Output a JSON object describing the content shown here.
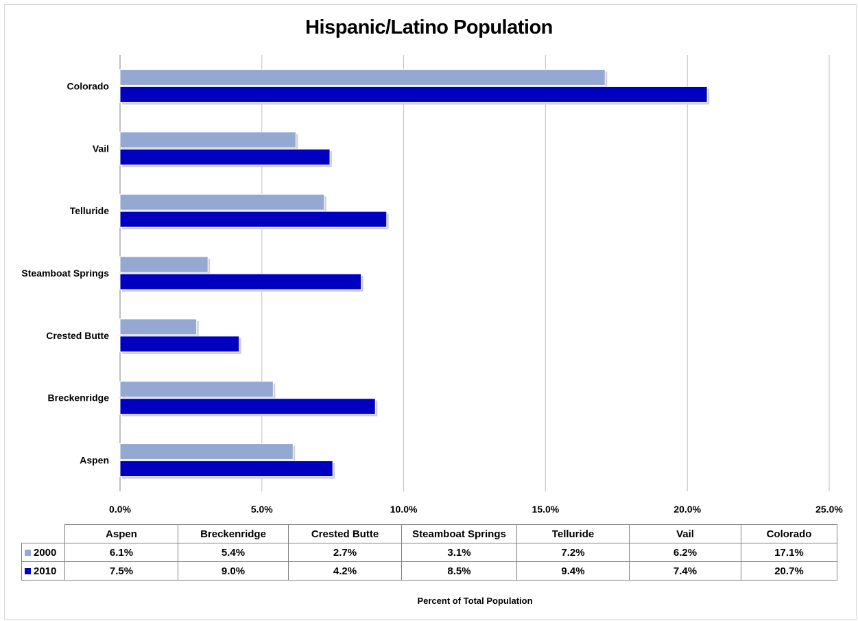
{
  "chart_data": {
    "type": "bar",
    "orientation": "horizontal",
    "title": "Hispanic/Latino Population",
    "xlabel": "Percent of Total Population",
    "ylabel": "",
    "categories": [
      "Aspen",
      "Breckenridge",
      "Crested Butte",
      "Steamboat Springs",
      "Telluride",
      "Vail",
      "Colorado"
    ],
    "series": [
      {
        "name": "2000",
        "color": "#95a8d2",
        "values": [
          6.1,
          5.4,
          2.7,
          3.1,
          7.2,
          6.2,
          17.1
        ],
        "labels": [
          "6.1%",
          "5.4%",
          "2.7%",
          "3.1%",
          "7.2%",
          "6.2%",
          "17.1%"
        ]
      },
      {
        "name": "2010",
        "color": "#0000c0",
        "values": [
          7.5,
          9.0,
          4.2,
          8.5,
          9.4,
          7.4,
          20.7
        ],
        "labels": [
          "7.5%",
          "9.0%",
          "4.2%",
          "8.5%",
          "9.4%",
          "7.4%",
          "20.7%"
        ]
      }
    ],
    "xlim": [
      0,
      25
    ],
    "x_ticks": [
      0,
      5,
      10,
      15,
      20,
      25
    ],
    "x_tick_labels": [
      "0.0%",
      "5.0%",
      "10.0%",
      "15.0%",
      "20.0%",
      "25.0%"
    ],
    "grid": "vertical",
    "legend": "data-table"
  }
}
